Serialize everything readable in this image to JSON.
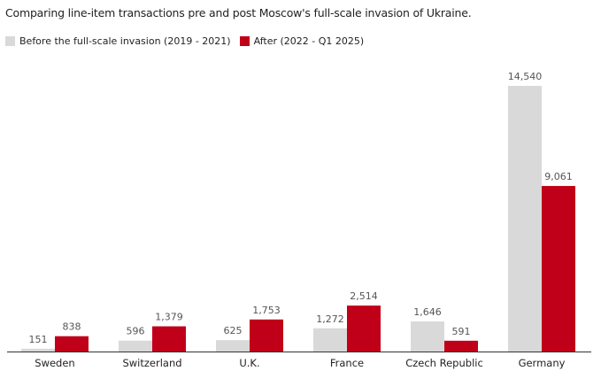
{
  "chart_data": {
    "type": "bar",
    "title": "Comparing line-item transactions pre and post Moscow's full-scale invasion of Ukraine.",
    "categories": [
      "Sweden",
      "Switzerland",
      "U.K.",
      "France",
      "Czech Republic",
      "Germany"
    ],
    "series": [
      {
        "name": "Before the full-scale invasion (2019 - 2021)",
        "values": [
          151,
          596,
          625,
          1272,
          1646,
          14540
        ],
        "labels": [
          "151",
          "596",
          "625",
          "1,272",
          "1,646",
          "14,540"
        ],
        "color": "#d9d9d9"
      },
      {
        "name": "After (2022 - Q1 2025)",
        "values": [
          838,
          1379,
          1753,
          2514,
          591,
          9061
        ],
        "labels": [
          "838",
          "1,379",
          "1,753",
          "2,514",
          "591",
          "9,061"
        ],
        "color": "#c00018"
      }
    ],
    "ylim": [
      0,
      14540
    ],
    "grid": false,
    "legend": "top-left",
    "xlabel": "",
    "ylabel": ""
  }
}
